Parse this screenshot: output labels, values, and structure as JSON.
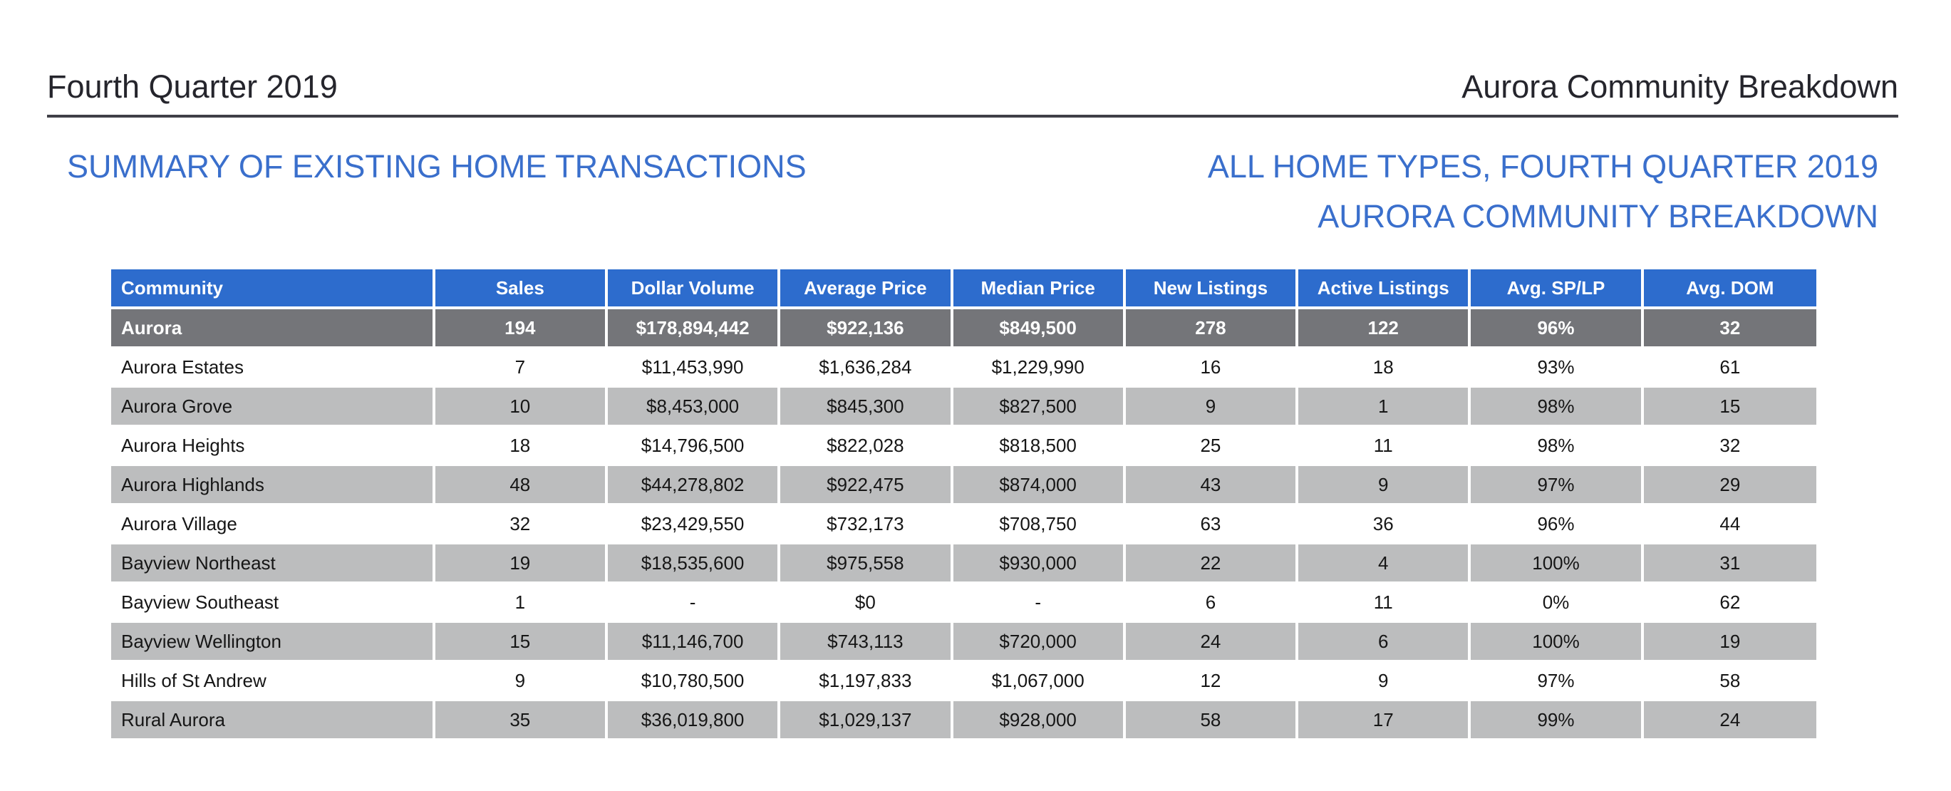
{
  "masthead": {
    "left": "Fourth Quarter 2019",
    "right": "Aurora Community Breakdown"
  },
  "section": {
    "left_title": "SUMMARY OF EXISTING HOME TRANSACTIONS",
    "right_title_line1": "ALL HOME TYPES, FOURTH QUARTER 2019",
    "right_title_line2": "AURORA COMMUNITY BREAKDOWN"
  },
  "table": {
    "columns": [
      "Community",
      "Sales",
      "Dollar Volume",
      "Average Price",
      "Median Price",
      "New Listings",
      "Active Listings",
      "Avg. SP/LP",
      "Avg. DOM"
    ],
    "summary_row": {
      "community": "Aurora",
      "values": [
        "194",
        "$178,894,442",
        "$922,136",
        "$849,500",
        "278",
        "122",
        "96%",
        "32"
      ]
    },
    "rows": [
      {
        "community": "Aurora Estates",
        "values": [
          "7",
          "$11,453,990",
          "$1,636,284",
          "$1,229,990",
          "16",
          "18",
          "93%",
          "61"
        ]
      },
      {
        "community": "Aurora Grove",
        "values": [
          "10",
          "$8,453,000",
          "$845,300",
          "$827,500",
          "9",
          "1",
          "98%",
          "15"
        ]
      },
      {
        "community": "Aurora Heights",
        "values": [
          "18",
          "$14,796,500",
          "$822,028",
          "$818,500",
          "25",
          "11",
          "98%",
          "32"
        ]
      },
      {
        "community": "Aurora Highlands",
        "values": [
          "48",
          "$44,278,802",
          "$922,475",
          "$874,000",
          "43",
          "9",
          "97%",
          "29"
        ]
      },
      {
        "community": "Aurora Village",
        "values": [
          "32",
          "$23,429,550",
          "$732,173",
          "$708,750",
          "63",
          "36",
          "96%",
          "44"
        ]
      },
      {
        "community": "Bayview Northeast",
        "values": [
          "19",
          "$18,535,600",
          "$975,558",
          "$930,000",
          "22",
          "4",
          "100%",
          "31"
        ]
      },
      {
        "community": "Bayview Southeast",
        "values": [
          "1",
          "-",
          "$0",
          "-",
          "6",
          "11",
          "0%",
          "62"
        ]
      },
      {
        "community": "Bayview Wellington",
        "values": [
          "15",
          "$11,146,700",
          "$743,113",
          "$720,000",
          "24",
          "6",
          "100%",
          "19"
        ]
      },
      {
        "community": "Hills of St Andrew",
        "values": [
          "9",
          "$10,780,500",
          "$1,197,833",
          "$1,067,000",
          "12",
          "9",
          "97%",
          "58"
        ]
      },
      {
        "community": "Rural Aurora",
        "values": [
          "35",
          "$36,019,800",
          "$1,029,137",
          "$928,000",
          "58",
          "17",
          "99%",
          "24"
        ]
      }
    ]
  },
  "colors": {
    "header_blue": "#2d6ccd",
    "summary_gray": "#747579",
    "stripe_gray": "#bcbdbe",
    "title_blue": "#3a6fcc",
    "rule_dark_gray": "#3f3f47",
    "masthead_text": "#25252c",
    "body_text": "#161616"
  }
}
